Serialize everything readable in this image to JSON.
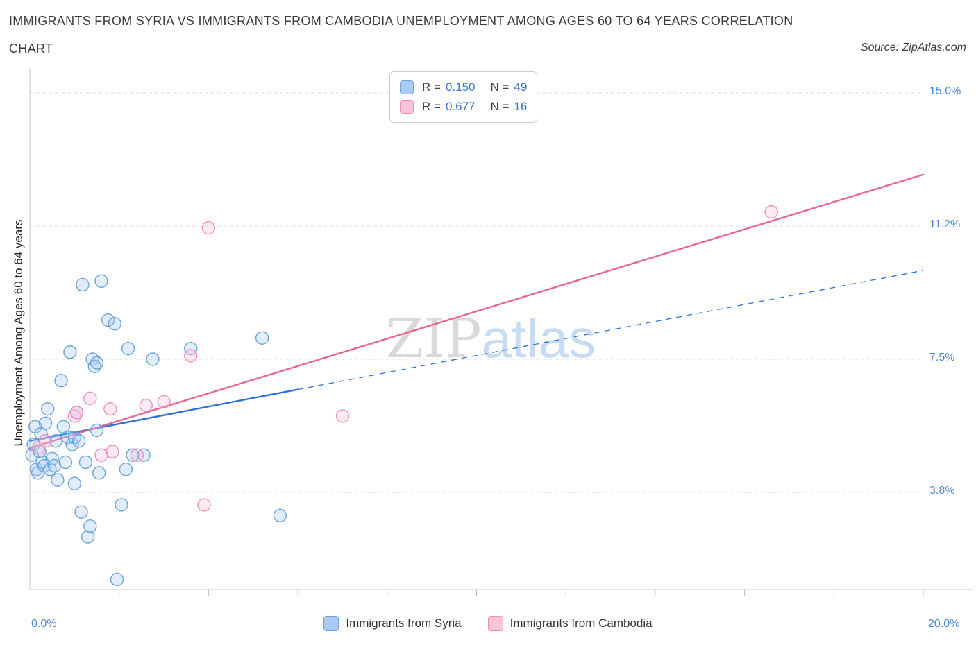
{
  "header": {
    "title_line1": "IMMIGRANTS FROM SYRIA VS IMMIGRANTS FROM CAMBODIA UNEMPLOYMENT AMONG AGES 60 TO 64 YEARS CORRELATION",
    "title_line2": "CHART",
    "source": "Source: ZipAtlas.com"
  },
  "legend_box": {
    "rows": [
      {
        "r_label": "R =",
        "r_value": "0.150",
        "n_label": "N =",
        "n_value": "49"
      },
      {
        "r_label": "R =",
        "r_value": "0.677",
        "n_label": "N =",
        "n_value": "16"
      }
    ]
  },
  "axis": {
    "ylabel": "Unemployment Among Ages 60 to 64 years",
    "x_min_label": "0.0%",
    "x_max_label": "20.0%"
  },
  "watermark": {
    "part1": "ZIP",
    "part2": "atlas"
  },
  "bottom_legend": {
    "items": [
      {
        "label": "Immigrants from Syria"
      },
      {
        "label": "Immigrants from Cambodia"
      }
    ]
  },
  "chart_data": {
    "type": "scatter",
    "title": "Immigrants from Syria vs Immigrants from Cambodia Unemployment Among Ages 60 to 64 years Correlation Chart",
    "xlabel": "",
    "ylabel": "Unemployment Among Ages 60 to 64 years",
    "xlim": [
      0,
      20
    ],
    "ylim": [
      1,
      15.75
    ],
    "grid": "horizontal-dashed",
    "legend_position": "top-center",
    "x_ticks": [
      2,
      4,
      6,
      8,
      10,
      12,
      14,
      16,
      18,
      20
    ],
    "y_ticks": [
      {
        "value": 15.0,
        "label": "15.0%"
      },
      {
        "value": 11.25,
        "label": "11.2%"
      },
      {
        "value": 7.5,
        "label": "7.5%"
      },
      {
        "value": 3.75,
        "label": "3.8%"
      }
    ],
    "series": [
      {
        "name": "Immigrants from Syria",
        "R": "0.150",
        "N": "49",
        "fill": "#a9cbf5",
        "stroke": "#5b9bd5",
        "points": [
          [
            0.05,
            4.8
          ],
          [
            0.08,
            5.1
          ],
          [
            0.12,
            5.6
          ],
          [
            0.15,
            4.4
          ],
          [
            0.18,
            4.3
          ],
          [
            0.22,
            4.9
          ],
          [
            0.25,
            5.4
          ],
          [
            0.28,
            4.6
          ],
          [
            0.32,
            4.5
          ],
          [
            0.35,
            5.7
          ],
          [
            0.4,
            6.1
          ],
          [
            0.45,
            4.4
          ],
          [
            0.5,
            4.7
          ],
          [
            0.55,
            4.5
          ],
          [
            0.58,
            5.2
          ],
          [
            0.62,
            4.1
          ],
          [
            0.7,
            6.9
          ],
          [
            0.75,
            5.6
          ],
          [
            0.8,
            4.6
          ],
          [
            0.85,
            5.3
          ],
          [
            0.9,
            7.7
          ],
          [
            0.95,
            5.1
          ],
          [
            1.0,
            5.3
          ],
          [
            1.0,
            4.0
          ],
          [
            1.05,
            6.0
          ],
          [
            1.1,
            5.2
          ],
          [
            1.15,
            3.2
          ],
          [
            1.18,
            9.6
          ],
          [
            1.25,
            4.6
          ],
          [
            1.3,
            2.5
          ],
          [
            1.35,
            2.8
          ],
          [
            1.4,
            7.5
          ],
          [
            1.45,
            7.3
          ],
          [
            1.5,
            5.5
          ],
          [
            1.5,
            7.4
          ],
          [
            1.55,
            4.3
          ],
          [
            1.6,
            9.7
          ],
          [
            1.75,
            8.6
          ],
          [
            1.9,
            8.5
          ],
          [
            1.95,
            1.3
          ],
          [
            2.05,
            3.4
          ],
          [
            2.15,
            4.4
          ],
          [
            2.2,
            7.8
          ],
          [
            2.3,
            4.8
          ],
          [
            2.55,
            4.8
          ],
          [
            2.75,
            7.5
          ],
          [
            3.6,
            7.8
          ],
          [
            5.2,
            8.1
          ],
          [
            5.6,
            3.1
          ]
        ]
      },
      {
        "name": "Immigrants from Cambodia",
        "R": "0.677",
        "N": "16",
        "fill": "#f9c3d9",
        "stroke": "#ec87ae",
        "points": [
          [
            0.2,
            5.0
          ],
          [
            0.35,
            5.2
          ],
          [
            1.0,
            5.9
          ],
          [
            1.05,
            6.0
          ],
          [
            1.35,
            6.4
          ],
          [
            1.6,
            4.8
          ],
          [
            1.8,
            6.1
          ],
          [
            1.85,
            4.9
          ],
          [
            2.4,
            4.8
          ],
          [
            2.6,
            6.2
          ],
          [
            3.0,
            6.3
          ],
          [
            3.6,
            7.6
          ],
          [
            3.9,
            3.4
          ],
          [
            4.0,
            11.2
          ],
          [
            7.0,
            5.9
          ],
          [
            16.6,
            11.65
          ]
        ]
      }
    ],
    "trend_lines": [
      {
        "name": "syria-trend",
        "color": "#2e6fd8",
        "solid": [
          [
            0,
            5.2
          ],
          [
            6,
            6.65
          ]
        ],
        "dashed": [
          [
            6,
            6.65
          ],
          [
            20,
            10.0
          ]
        ]
      },
      {
        "name": "cambodia-trend",
        "color": "#e8639a",
        "solid": [
          [
            0,
            5.0
          ],
          [
            20,
            12.7
          ]
        ]
      }
    ]
  }
}
